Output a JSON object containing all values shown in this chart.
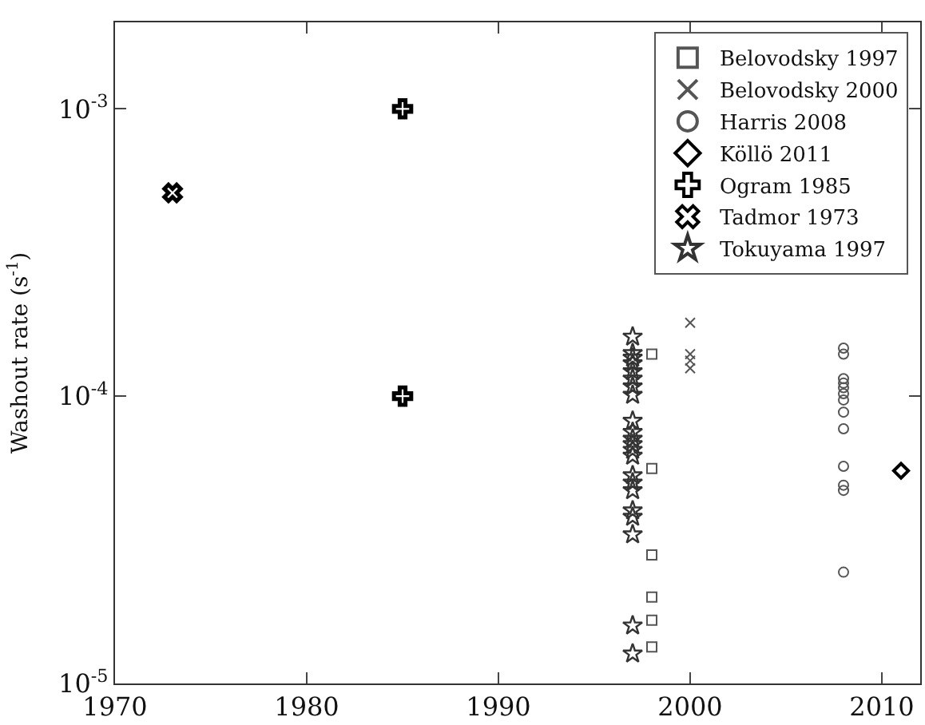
{
  "chart_data": {
    "type": "scatter",
    "ylabel": "Washout rate (s$^{-1}$)",
    "log": "y",
    "xlim": [
      1970,
      2012
    ],
    "xticks": [
      1970,
      1980,
      1990,
      2000,
      2010
    ],
    "ylim": [
      1e-05,
      0.002
    ],
    "yticks": [
      {
        "value": 1e-05,
        "label": "10$^{-5}$"
      },
      {
        "value": 0.0001,
        "label": "10$^{-4}$"
      },
      {
        "value": 0.001,
        "label": "10$^{-3}$"
      }
    ],
    "legend": "top right",
    "series": [
      {
        "name": "Belovodsky 1997",
        "color": "#555555",
        "marker": "square",
        "x": [
          1998,
          1998,
          1998,
          1998,
          1998,
          1998
        ],
        "values": [
          0.00014,
          5.6e-05,
          2.8e-05,
          2e-05,
          1.66e-05,
          1.34e-05
        ]
      },
      {
        "name": "Belovodsky 2000",
        "color": "#555555",
        "marker": "cross",
        "x": [
          2000,
          2000,
          2000,
          2000
        ],
        "values": [
          0.00018,
          0.00014,
          0.000133,
          0.000125
        ]
      },
      {
        "name": "Harris 2008",
        "color": "#555555",
        "marker": "circle",
        "x": [
          2008,
          2008,
          2008,
          2008,
          2008,
          2008,
          2008,
          2008,
          2008,
          2008,
          2008,
          2008,
          2008
        ],
        "values": [
          0.000147,
          0.00014,
          0.000115,
          0.000111,
          0.000107,
          0.000102,
          9.7e-05,
          8.8e-05,
          7.7e-05,
          5.7e-05,
          4.9e-05,
          4.7e-05,
          2.44e-05
        ]
      },
      {
        "name": "Köllö 2011",
        "color": "#000000",
        "marker": "diamond",
        "x": [
          2011
        ],
        "values": [
          5.5e-05
        ]
      },
      {
        "name": "Ogram 1985",
        "color": "#000000",
        "marker": "plus",
        "x": [
          1985,
          1985
        ],
        "values": [
          0.001,
          0.0001
        ]
      },
      {
        "name": "Tadmor 1973",
        "color": "#000000",
        "marker": "x",
        "x": [
          1973
        ],
        "values": [
          0.00051
        ]
      },
      {
        "name": "Tokuyama 1997",
        "color": "#333333",
        "marker": "star",
        "x": [
          1997,
          1997,
          1997,
          1997,
          1997,
          1997,
          1997,
          1997,
          1997,
          1997,
          1997,
          1997,
          1997,
          1997,
          1997,
          1997,
          1997,
          1997,
          1997,
          1997,
          1997,
          1997
        ],
        "values": [
          0.000161,
          0.000141,
          0.000136,
          0.00013,
          0.000122,
          0.000115,
          0.000108,
          0.000101,
          8.2e-05,
          7.5e-05,
          7.1e-05,
          6.8e-05,
          6.5e-05,
          6.2e-05,
          5.3e-05,
          5e-05,
          4.7e-05,
          4e-05,
          3.8e-05,
          3.3e-05,
          1.59e-05,
          1.27e-05
        ]
      }
    ]
  }
}
